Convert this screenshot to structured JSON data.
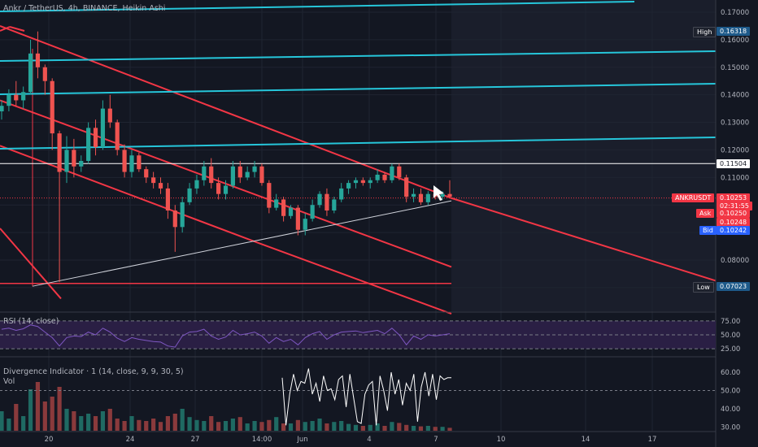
{
  "header": {
    "title": "Ankr / TetherUS, 4h, BINANCE, Heikin Ashi"
  },
  "panes": {
    "rsi_label": "RSI (14, close)",
    "div_label": "Divergence Indicator · 1 (14, close, 9, 9, 30, 5)",
    "vol_label": "Vol"
  },
  "price_axis": {
    "ticks": [
      "0.17000",
      "0.16000",
      "0.15000",
      "0.14000",
      "0.13000",
      "0.12000",
      "0.11000",
      "0.08000"
    ],
    "high_label": "High",
    "high_value": "0.16318",
    "level_value": "0.11504",
    "symbol_label": "ANKRUSDT",
    "symbol_value": "0.10253",
    "countdown": "02:31:55",
    "ask_label": "Ask",
    "ask_value": "0.10250",
    "mid_value": "0.10248",
    "bid_label": "Bid",
    "bid_value": "0.10242",
    "low_label": "Low",
    "low_value": "0.07023"
  },
  "rsi_axis": {
    "ticks": [
      "75.00",
      "50.00",
      "25.00"
    ]
  },
  "div_axis": {
    "ticks": [
      "60.00",
      "50.00",
      "40.00",
      "30.00"
    ]
  },
  "time_axis": {
    "labels": [
      "20",
      "24",
      "27",
      "14:00",
      "Jun",
      "4",
      "7",
      "10",
      "14",
      "17"
    ]
  },
  "colors": {
    "background": "#131722",
    "up": "#26a69a",
    "down": "#ef5350",
    "trend_red": "#f23645",
    "trend_cyan": "#26c6da",
    "rsi_band": "#2a1f44",
    "rsi_line": "#7e57c2"
  },
  "chart_data": {
    "type": "candlestick",
    "title": "Ankr / TetherUS, 4h, BINANCE, Heikin Ashi",
    "price_ylim": [
      0.066,
      0.173
    ],
    "ohlc": [
      [
        0.134,
        0.138,
        0.131,
        0.136
      ],
      [
        0.136,
        0.142,
        0.134,
        0.14
      ],
      [
        0.14,
        0.145,
        0.136,
        0.138
      ],
      [
        0.138,
        0.143,
        0.135,
        0.141
      ],
      [
        0.141,
        0.16,
        0.14,
        0.155
      ],
      [
        0.155,
        0.163,
        0.146,
        0.15
      ],
      [
        0.15,
        0.151,
        0.14,
        0.145
      ],
      [
        0.145,
        0.146,
        0.12,
        0.126
      ],
      [
        0.126,
        0.127,
        0.072,
        0.112
      ],
      [
        0.112,
        0.125,
        0.108,
        0.12
      ],
      [
        0.12,
        0.124,
        0.11,
        0.114
      ],
      [
        0.114,
        0.118,
        0.112,
        0.116
      ],
      [
        0.116,
        0.13,
        0.115,
        0.128
      ],
      [
        0.128,
        0.131,
        0.118,
        0.121
      ],
      [
        0.121,
        0.138,
        0.12,
        0.135
      ],
      [
        0.135,
        0.14,
        0.128,
        0.13
      ],
      [
        0.13,
        0.131,
        0.118,
        0.12
      ],
      [
        0.12,
        0.122,
        0.11,
        0.112
      ],
      [
        0.112,
        0.12,
        0.11,
        0.118
      ],
      [
        0.118,
        0.119,
        0.112,
        0.113
      ],
      [
        0.113,
        0.114,
        0.108,
        0.11
      ],
      [
        0.11,
        0.112,
        0.106,
        0.108
      ],
      [
        0.108,
        0.11,
        0.104,
        0.106
      ],
      [
        0.106,
        0.108,
        0.095,
        0.098
      ],
      [
        0.098,
        0.1,
        0.083,
        0.092
      ],
      [
        0.092,
        0.103,
        0.09,
        0.101
      ],
      [
        0.101,
        0.108,
        0.1,
        0.106
      ],
      [
        0.106,
        0.111,
        0.104,
        0.109
      ],
      [
        0.109,
        0.116,
        0.107,
        0.114
      ],
      [
        0.114,
        0.117,
        0.106,
        0.108
      ],
      [
        0.108,
        0.11,
        0.102,
        0.104
      ],
      [
        0.104,
        0.109,
        0.102,
        0.107
      ],
      [
        0.107,
        0.116,
        0.106,
        0.114
      ],
      [
        0.114,
        0.116,
        0.108,
        0.11
      ],
      [
        0.11,
        0.114,
        0.109,
        0.112
      ],
      [
        0.112,
        0.116,
        0.11,
        0.114
      ],
      [
        0.114,
        0.115,
        0.107,
        0.108
      ],
      [
        0.108,
        0.109,
        0.097,
        0.099
      ],
      [
        0.099,
        0.104,
        0.098,
        0.102
      ],
      [
        0.102,
        0.103,
        0.094,
        0.096
      ],
      [
        0.096,
        0.1,
        0.095,
        0.099
      ],
      [
        0.099,
        0.1,
        0.089,
        0.091
      ],
      [
        0.091,
        0.097,
        0.089,
        0.095
      ],
      [
        0.095,
        0.102,
        0.094,
        0.1
      ],
      [
        0.1,
        0.105,
        0.099,
        0.104
      ],
      [
        0.104,
        0.106,
        0.096,
        0.098
      ],
      [
        0.098,
        0.103,
        0.097,
        0.102
      ],
      [
        0.102,
        0.108,
        0.101,
        0.106
      ],
      [
        0.106,
        0.109,
        0.104,
        0.108
      ],
      [
        0.108,
        0.11,
        0.106,
        0.109
      ],
      [
        0.109,
        0.11,
        0.107,
        0.108
      ],
      [
        0.108,
        0.11,
        0.106,
        0.109
      ],
      [
        0.109,
        0.113,
        0.108,
        0.111
      ],
      [
        0.111,
        0.112,
        0.108,
        0.109
      ],
      [
        0.109,
        0.115,
        0.108,
        0.114
      ],
      [
        0.114,
        0.115,
        0.109,
        0.11
      ],
      [
        0.11,
        0.111,
        0.101,
        0.103
      ],
      [
        0.103,
        0.106,
        0.101,
        0.104
      ],
      [
        0.104,
        0.106,
        0.1,
        0.101
      ],
      [
        0.101,
        0.105,
        0.1,
        0.104
      ],
      [
        0.104,
        0.106,
        0.102,
        0.103
      ],
      [
        0.103,
        0.105,
        0.102,
        0.104
      ],
      [
        0.104,
        0.109,
        0.103,
        0.103
      ]
    ],
    "volume_max": 100,
    "volume": [
      40,
      25,
      55,
      30,
      85,
      100,
      60,
      70,
      90,
      45,
      40,
      30,
      35,
      30,
      40,
      45,
      25,
      20,
      30,
      22,
      20,
      25,
      18,
      30,
      35,
      45,
      28,
      22,
      20,
      30,
      18,
      20,
      25,
      28,
      15,
      20,
      18,
      22,
      28,
      15,
      15,
      22,
      18,
      20,
      25,
      15,
      18,
      20,
      14,
      12,
      10,
      12,
      15,
      10,
      18,
      16,
      12,
      10,
      9,
      10,
      8,
      8,
      6
    ],
    "rsi_ylim": [
      15,
      85
    ],
    "rsi": [
      60,
      62,
      58,
      61,
      68,
      65,
      55,
      45,
      30,
      45,
      48,
      47,
      55,
      50,
      62,
      55,
      44,
      38,
      45,
      42,
      40,
      38,
      37,
      30,
      28,
      48,
      55,
      56,
      60,
      48,
      42,
      46,
      58,
      50,
      52,
      55,
      48,
      35,
      45,
      38,
      42,
      32,
      45,
      52,
      56,
      42,
      50,
      55,
      56,
      57,
      54,
      56,
      58,
      52,
      62,
      50,
      32,
      48,
      42,
      50,
      48,
      50,
      52
    ],
    "divergence_ylim": [
      28,
      64
    ],
    "divergence": [
      57,
      31,
      48,
      59,
      50,
      55,
      54,
      62,
      48,
      54,
      44,
      58,
      50,
      51,
      45,
      56,
      58,
      41,
      59,
      46,
      33,
      32,
      48,
      53,
      55,
      31,
      58,
      50,
      39,
      60,
      48,
      56,
      42,
      54,
      50,
      59,
      33,
      52,
      60,
      47,
      59,
      45,
      58,
      56,
      57,
      57
    ],
    "trend_lines": {
      "channel_upper": [
        [
          0.0,
          0.165
        ],
        [
          555,
          0.1025
        ],
        [
          880,
          0.0725
        ]
      ],
      "channel_mid": [
        [
          0.0,
          0.138
        ],
        [
          555,
          0.0775
        ]
      ],
      "channel_low": [
        [
          0.0,
          0.1215
        ],
        [
          315,
          0.0865
        ],
        [
          555,
          0.0605
        ]
      ],
      "support_line": [
        [
          40,
          0.0705
        ],
        [
          555,
          0.1015
        ]
      ],
      "low_line": 0.0715
    }
  }
}
